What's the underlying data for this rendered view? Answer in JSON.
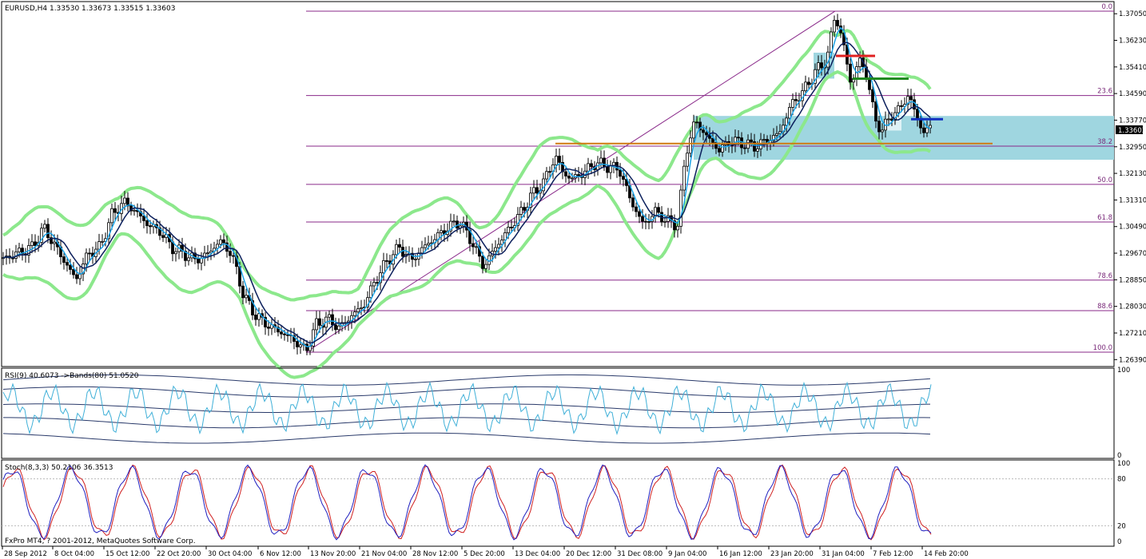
{
  "header": {
    "symbol_line": "EURUSD,H4  1.33530 1.33673 1.33515 1.33603",
    "rsi_line": "RSI(9) 40.6073  ->Bands(80) 51.0520",
    "stoch_line": "Stoch(8,3,3) 50.2106 36.3513",
    "copyright": "FxPro MT4, ? 2001-2012, MetaQuotes Software Corp."
  },
  "current_price": "1.33603",
  "colors": {
    "candle": "#000000",
    "fast_ma": "#1aa3e8",
    "slow_ma": "#0b1f5c",
    "bollinger": "#8ce88c",
    "fib": "#8a2a8a",
    "zone": "#9fd6e0",
    "red_level": "#e02020",
    "green_level": "#208a20",
    "blue_level": "#1030c0",
    "orange_level": "#d07a10",
    "stoch_main": "#2020c0",
    "stoch_signal": "#d02020",
    "rsi": "#40b0d8"
  },
  "chart_data": [
    {
      "type": "candlestick",
      "panel": "price",
      "y_ticks": [
        "1.37050",
        "1.36230",
        "1.35410",
        "1.34590",
        "1.33770",
        "1.32950",
        "1.32130",
        "1.31310",
        "1.30490",
        "1.29670",
        "1.28850",
        "1.28030",
        "1.27210",
        "1.26390"
      ],
      "ylim": [
        1.2625,
        1.3735
      ],
      "x_ticks": [
        "28 Sep 2012",
        "8 Oct 04:00",
        "15 Oct 12:00",
        "22 Oct 20:00",
        "30 Oct 04:00",
        "6 Nov 12:00",
        "13 Nov 20:00",
        "21 Nov 04:00",
        "28 Nov 12:00",
        "5 Dec 20:00",
        "13 Dec 04:00",
        "20 Dec 12:00",
        "31 Dec 08:00",
        "9 Jan 04:00",
        "16 Jan 12:00",
        "23 Jan 20:00",
        "31 Jan 04:00",
        "7 Feb 12:00",
        "14 Feb 20:00"
      ],
      "close_path": [
        [
          0,
          1.2945
        ],
        [
          20,
          1.2965
        ],
        [
          40,
          1.2985
        ],
        [
          55,
          1.3045
        ],
        [
          65,
          1.3005
        ],
        [
          80,
          1.2945
        ],
        [
          95,
          1.2885
        ],
        [
          110,
          1.2965
        ],
        [
          125,
          1.2985
        ],
        [
          140,
          1.3085
        ],
        [
          155,
          1.3125
        ],
        [
          170,
          1.3095
        ],
        [
          185,
          1.3055
        ],
        [
          200,
          1.3035
        ],
        [
          215,
          1.2985
        ],
        [
          230,
          1.2965
        ],
        [
          245,
          1.2945
        ],
        [
          260,
          1.2965
        ],
        [
          275,
          1.3005
        ],
        [
          290,
          1.2965
        ],
        [
          305,
          1.2835
        ],
        [
          320,
          1.2775
        ],
        [
          335,
          1.2745
        ],
        [
          350,
          1.2725
        ],
        [
          365,
          1.2705
        ],
        [
          383,
          1.2665
        ],
        [
          395,
          1.2745
        ],
        [
          410,
          1.2765
        ],
        [
          425,
          1.2735
        ],
        [
          440,
          1.2775
        ],
        [
          455,
          1.2805
        ],
        [
          470,
          1.2885
        ],
        [
          485,
          1.2945
        ],
        [
          500,
          1.2985
        ],
        [
          515,
          1.2945
        ],
        [
          530,
          1.2985
        ],
        [
          545,
          1.3015
        ],
        [
          560,
          1.3045
        ],
        [
          575,
          1.3065
        ],
        [
          590,
          1.3005
        ],
        [
          605,
          1.2925
        ],
        [
          620,
          1.2985
        ],
        [
          635,
          1.3035
        ],
        [
          650,
          1.3085
        ],
        [
          665,
          1.3145
        ],
        [
          680,
          1.3185
        ],
        [
          695,
          1.3265
        ],
        [
          705,
          1.3215
        ],
        [
          715,
          1.3195
        ],
        [
          730,
          1.3215
        ],
        [
          745,
          1.3245
        ],
        [
          760,
          1.3235
        ],
        [
          775,
          1.3225
        ],
        [
          790,
          1.3125
        ],
        [
          805,
          1.3055
        ],
        [
          820,
          1.3095
        ],
        [
          835,
          1.3065
        ],
        [
          848,
          1.3055
        ],
        [
          858,
          1.3275
        ],
        [
          870,
          1.3375
        ],
        [
          885,
          1.3325
        ],
        [
          900,
          1.3285
        ],
        [
          915,
          1.3315
        ],
        [
          930,
          1.3305
        ],
        [
          945,
          1.3295
        ],
        [
          960,
          1.3315
        ],
        [
          975,
          1.3335
        ],
        [
          990,
          1.3425
        ],
        [
          1005,
          1.3465
        ],
        [
          1020,
          1.3525
        ],
        [
          1035,
          1.3565
        ],
        [
          1045,
          1.3705
        ],
        [
          1055,
          1.3615
        ],
        [
          1065,
          1.3485
        ],
        [
          1075,
          1.3565
        ],
        [
          1085,
          1.3515
        ],
        [
          1095,
          1.3375
        ],
        [
          1105,
          1.3345
        ],
        [
          1115,
          1.3395
        ],
        [
          1125,
          1.3405
        ],
        [
          1135,
          1.3455
        ],
        [
          1145,
          1.3405
        ],
        [
          1155,
          1.3335
        ],
        [
          1165,
          1.336
        ]
      ],
      "fib_levels": [
        {
          "label": "0.0",
          "price": 1.3713
        },
        {
          "label": "23.6",
          "price": 1.3453
        },
        {
          "label": "38.2",
          "price": 1.3297
        },
        {
          "label": "50.0",
          "price": 1.3179
        },
        {
          "label": "61.8",
          "price": 1.3063
        },
        {
          "label": "78.6",
          "price": 1.2884
        },
        {
          "label": "88.6",
          "price": 1.279
        },
        {
          "label": "100.0",
          "price": 1.2662
        }
      ]
    },
    {
      "type": "line",
      "panel": "rsi",
      "name": "RSI(9)",
      "y_ticks": [
        "100",
        "0"
      ],
      "ylim": [
        0,
        100
      ]
    },
    {
      "type": "line",
      "panel": "stochastic",
      "name": "Stoch(8,3,3)",
      "y_ticks": [
        "100",
        "80",
        "20",
        "0"
      ],
      "ylim": [
        0,
        100
      ]
    }
  ]
}
